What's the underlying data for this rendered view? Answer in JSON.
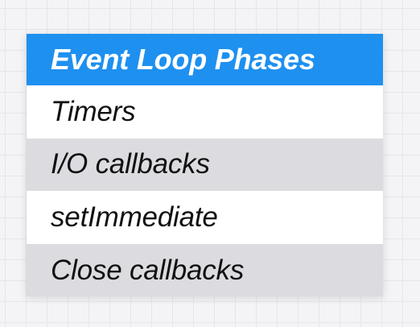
{
  "table": {
    "title": "Event Loop Phases",
    "rows": [
      {
        "label": "Timers"
      },
      {
        "label": "I/O callbacks"
      },
      {
        "label": "setImmediate"
      },
      {
        "label": "Close callbacks"
      }
    ]
  },
  "colors": {
    "header_bg": "#1e90f0",
    "row_white": "#ffffff",
    "row_grey": "#dcdce0"
  }
}
